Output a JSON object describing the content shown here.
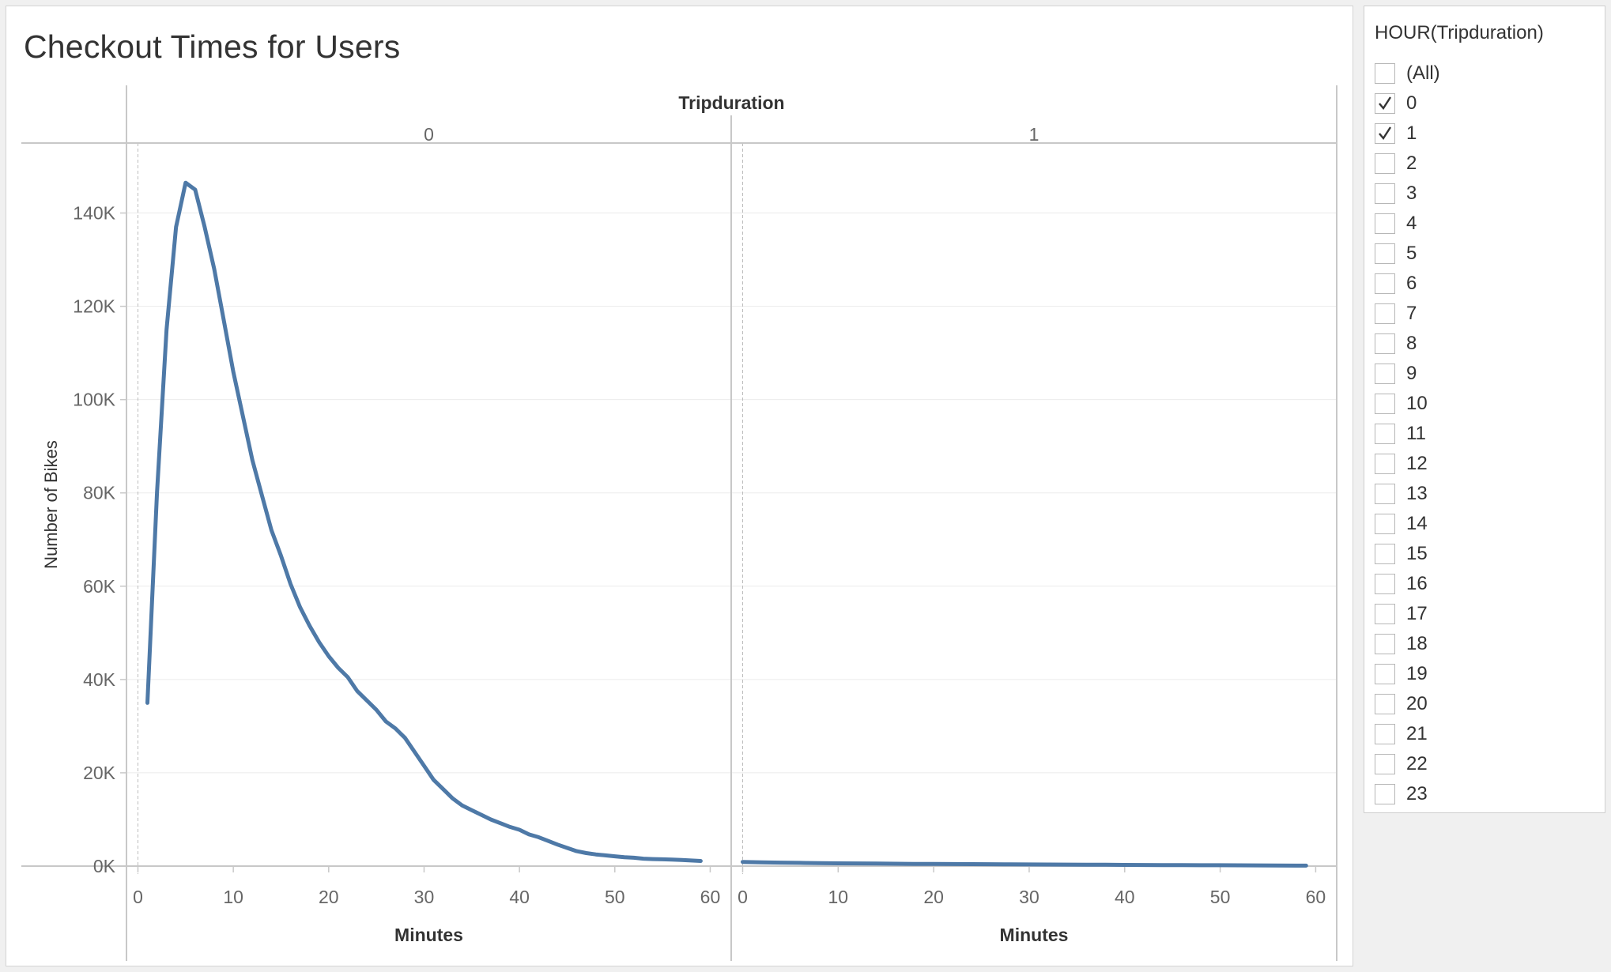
{
  "title": "Checkout Times for Users",
  "filter": {
    "title": "HOUR(Tripduration)",
    "items": [
      {
        "label": "(All)",
        "checked": false
      },
      {
        "label": "0",
        "checked": true
      },
      {
        "label": "1",
        "checked": true
      },
      {
        "label": "2",
        "checked": false
      },
      {
        "label": "3",
        "checked": false
      },
      {
        "label": "4",
        "checked": false
      },
      {
        "label": "5",
        "checked": false
      },
      {
        "label": "6",
        "checked": false
      },
      {
        "label": "7",
        "checked": false
      },
      {
        "label": "8",
        "checked": false
      },
      {
        "label": "9",
        "checked": false
      },
      {
        "label": "10",
        "checked": false
      },
      {
        "label": "11",
        "checked": false
      },
      {
        "label": "12",
        "checked": false
      },
      {
        "label": "13",
        "checked": false
      },
      {
        "label": "14",
        "checked": false
      },
      {
        "label": "15",
        "checked": false
      },
      {
        "label": "16",
        "checked": false
      },
      {
        "label": "17",
        "checked": false
      },
      {
        "label": "18",
        "checked": false
      },
      {
        "label": "19",
        "checked": false
      },
      {
        "label": "20",
        "checked": false
      },
      {
        "label": "21",
        "checked": false
      },
      {
        "label": "22",
        "checked": false
      },
      {
        "label": "23",
        "checked": false
      }
    ]
  },
  "chart_data": {
    "type": "line",
    "title": "Checkout Times for Users",
    "facet_label": "Tripduration",
    "xlabel": "Minutes",
    "ylabel": "Number of Bikes",
    "ylim": [
      0,
      155000
    ],
    "xlim": [
      -1.2,
      62.2
    ],
    "xticks": [
      0,
      10,
      20,
      30,
      40,
      50,
      60
    ],
    "yticks": [
      0,
      20000,
      40000,
      60000,
      80000,
      100000,
      120000,
      140000
    ],
    "ytick_labels": [
      "0K",
      "20K",
      "40K",
      "60K",
      "80K",
      "100K",
      "120K",
      "140K"
    ],
    "color": "#4e79a7",
    "grid": true,
    "panels": [
      {
        "facet": "0",
        "x": [
          1,
          2,
          3,
          4,
          5,
          6,
          7,
          8,
          9,
          10,
          11,
          12,
          13,
          14,
          15,
          16,
          17,
          18,
          19,
          20,
          21,
          22,
          23,
          24,
          25,
          26,
          27,
          28,
          29,
          30,
          31,
          32,
          33,
          34,
          35,
          36,
          37,
          38,
          39,
          40,
          41,
          42,
          43,
          44,
          45,
          46,
          47,
          48,
          49,
          50,
          51,
          52,
          53,
          54,
          55,
          56,
          57,
          58,
          59
        ],
        "y": [
          35000,
          80000,
          115000,
          137000,
          146500,
          145000,
          137000,
          128000,
          117000,
          106000,
          96500,
          87000,
          79500,
          72000,
          66500,
          60500,
          55500,
          51500,
          48000,
          45000,
          42500,
          40500,
          37500,
          35500,
          33500,
          31000,
          29500,
          27500,
          24500,
          21500,
          18500,
          16500,
          14500,
          13000,
          12000,
          11000,
          10000,
          9200,
          8400,
          7800,
          6800,
          6200,
          5400,
          4600,
          3900,
          3200,
          2800,
          2500,
          2300,
          2100,
          1900,
          1800,
          1600,
          1500,
          1450,
          1400,
          1300,
          1200,
          1100
        ]
      },
      {
        "facet": "1",
        "x": [
          0,
          2,
          4,
          6,
          8,
          10,
          12,
          14,
          16,
          18,
          20,
          22,
          24,
          26,
          28,
          30,
          32,
          34,
          36,
          38,
          40,
          42,
          44,
          46,
          48,
          50,
          52,
          54,
          56,
          58,
          59
        ],
        "y": [
          900,
          800,
          750,
          700,
          650,
          600,
          570,
          540,
          500,
          480,
          460,
          440,
          420,
          400,
          380,
          360,
          340,
          320,
          300,
          280,
          260,
          240,
          220,
          200,
          190,
          180,
          170,
          160,
          140,
          110,
          100
        ]
      }
    ]
  }
}
